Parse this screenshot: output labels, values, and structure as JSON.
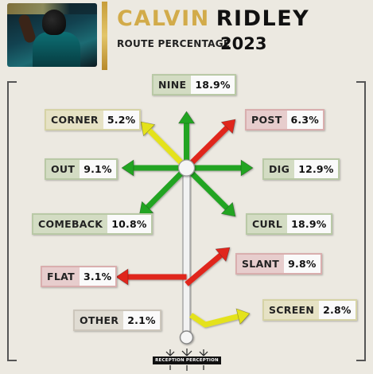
{
  "header": {
    "first_name": "CALVIN",
    "last_name": "RIDLEY",
    "subtitle": "ROUTE PERCENTAGE",
    "year": "2023"
  },
  "colors": {
    "green": "#22a421",
    "yellow": "#e4e21f",
    "red": "#e0261f",
    "gold": "#d2ab4a",
    "stem": "#f2f2f2"
  },
  "chart_data": {
    "type": "route-tree",
    "title": "CALVIN RIDLEY",
    "subtitle": "ROUTE PERCENTAGE 2023",
    "routes": [
      {
        "name": "NINE",
        "value": "18.9%",
        "pct": 18.9,
        "color": "green"
      },
      {
        "name": "CORNER",
        "value": "5.2%",
        "pct": 5.2,
        "color": "yellow"
      },
      {
        "name": "POST",
        "value": "6.3%",
        "pct": 6.3,
        "color": "red"
      },
      {
        "name": "OUT",
        "value": "9.1%",
        "pct": 9.1,
        "color": "green"
      },
      {
        "name": "DIG",
        "value": "12.9%",
        "pct": 12.9,
        "color": "green"
      },
      {
        "name": "COMEBACK",
        "value": "10.8%",
        "pct": 10.8,
        "color": "green"
      },
      {
        "name": "CURL",
        "value": "18.9%",
        "pct": 18.9,
        "color": "green"
      },
      {
        "name": "FLAT",
        "value": "3.1%",
        "pct": 3.1,
        "color": "red"
      },
      {
        "name": "SLANT",
        "value": "9.8%",
        "pct": 9.8,
        "color": "red"
      },
      {
        "name": "OTHER",
        "value": "2.1%",
        "pct": 2.1,
        "color": "gray"
      },
      {
        "name": "SCREEN",
        "value": "2.8%",
        "pct": 2.8,
        "color": "yellow"
      }
    ]
  },
  "footer": {
    "logo_text": "RECEPTION PERCEPTION"
  }
}
